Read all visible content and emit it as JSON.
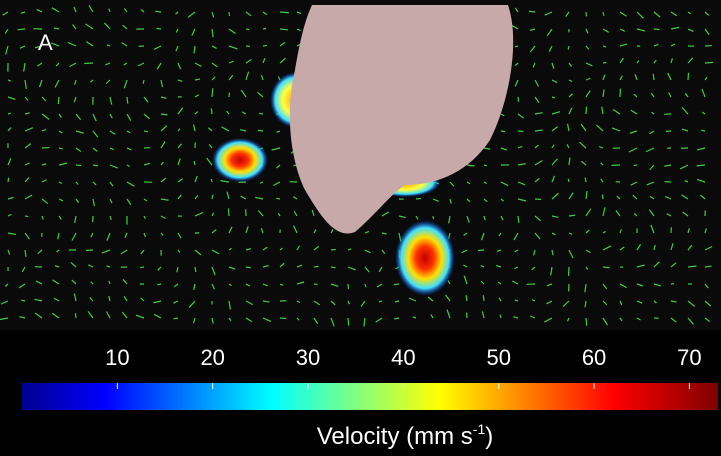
{
  "panel_label": "A",
  "colorbar": {
    "lim": [
      0,
      73
    ],
    "ticks": [
      10,
      20,
      30,
      40,
      50,
      60,
      70
    ],
    "label": {
      "text": "Velocity (mm s",
      "superscript": "-1",
      "suffix": ")"
    }
  }
}
